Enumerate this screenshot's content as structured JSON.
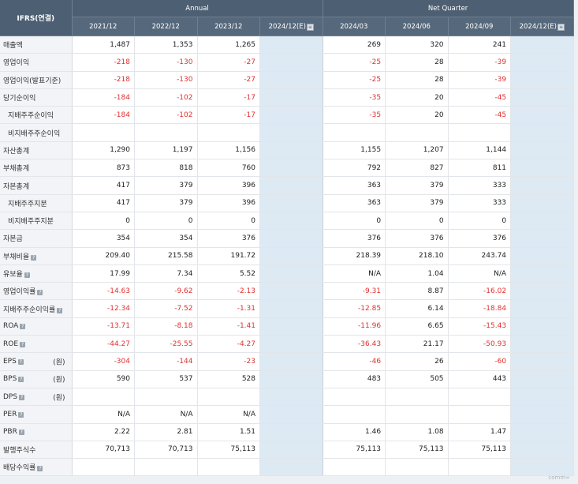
{
  "header": {
    "corner": "IFRS(연결)",
    "annual_label": "Annual",
    "quarter_label": "Net Quarter",
    "annual_cols": [
      "2021/12",
      "2022/12",
      "2023/12",
      "2024/12(E)"
    ],
    "quarter_cols": [
      "2024/03",
      "2024/06",
      "2024/09",
      "2024/12(E)"
    ]
  },
  "rows": [
    {
      "label": "매출액",
      "sub": false,
      "help": false,
      "unit": "",
      "annual": [
        "1,487",
        "1,353",
        "1,265",
        ""
      ],
      "quarter": [
        "269",
        "320",
        "241",
        ""
      ]
    },
    {
      "label": "영업이익",
      "sub": false,
      "help": false,
      "unit": "",
      "annual": [
        "-218",
        "-130",
        "-27",
        ""
      ],
      "quarter": [
        "-25",
        "28",
        "-39",
        ""
      ]
    },
    {
      "label": "영업이익(발표기준)",
      "sub": false,
      "help": false,
      "unit": "",
      "annual": [
        "-218",
        "-130",
        "-27",
        ""
      ],
      "quarter": [
        "-25",
        "28",
        "-39",
        ""
      ]
    },
    {
      "label": "당기순이익",
      "sub": false,
      "help": false,
      "unit": "",
      "annual": [
        "-184",
        "-102",
        "-17",
        ""
      ],
      "quarter": [
        "-35",
        "20",
        "-45",
        ""
      ]
    },
    {
      "label": "지배주주순이익",
      "sub": true,
      "help": false,
      "unit": "",
      "annual": [
        "-184",
        "-102",
        "-17",
        ""
      ],
      "quarter": [
        "-35",
        "20",
        "-45",
        ""
      ]
    },
    {
      "label": "비지배주주순이익",
      "sub": true,
      "help": false,
      "unit": "",
      "annual": [
        "",
        "",
        "",
        ""
      ],
      "quarter": [
        "",
        "",
        "",
        ""
      ]
    },
    {
      "label": "자산총계",
      "sub": false,
      "help": false,
      "unit": "",
      "annual": [
        "1,290",
        "1,197",
        "1,156",
        ""
      ],
      "quarter": [
        "1,155",
        "1,207",
        "1,144",
        ""
      ]
    },
    {
      "label": "부채총계",
      "sub": false,
      "help": false,
      "unit": "",
      "annual": [
        "873",
        "818",
        "760",
        ""
      ],
      "quarter": [
        "792",
        "827",
        "811",
        ""
      ]
    },
    {
      "label": "자본총계",
      "sub": false,
      "help": false,
      "unit": "",
      "annual": [
        "417",
        "379",
        "396",
        ""
      ],
      "quarter": [
        "363",
        "379",
        "333",
        ""
      ]
    },
    {
      "label": "지배주주지분",
      "sub": true,
      "help": false,
      "unit": "",
      "annual": [
        "417",
        "379",
        "396",
        ""
      ],
      "quarter": [
        "363",
        "379",
        "333",
        ""
      ]
    },
    {
      "label": "비지배주주지분",
      "sub": true,
      "help": false,
      "unit": "",
      "annual": [
        "0",
        "0",
        "0",
        ""
      ],
      "quarter": [
        "0",
        "0",
        "0",
        ""
      ]
    },
    {
      "label": "자본금",
      "sub": false,
      "help": false,
      "unit": "",
      "annual": [
        "354",
        "354",
        "376",
        ""
      ],
      "quarter": [
        "376",
        "376",
        "376",
        ""
      ]
    },
    {
      "label": "부채비율",
      "sub": false,
      "help": true,
      "unit": "",
      "annual": [
        "209.40",
        "215.58",
        "191.72",
        ""
      ],
      "quarter": [
        "218.39",
        "218.10",
        "243.74",
        ""
      ]
    },
    {
      "label": "유보율",
      "sub": false,
      "help": true,
      "unit": "",
      "annual": [
        "17.99",
        "7.34",
        "5.52",
        ""
      ],
      "quarter": [
        "N/A",
        "1.04",
        "N/A",
        ""
      ]
    },
    {
      "label": "영업이익률",
      "sub": false,
      "help": true,
      "unit": "",
      "annual": [
        "-14.63",
        "-9.62",
        "-2.13",
        ""
      ],
      "quarter": [
        "-9.31",
        "8.87",
        "-16.02",
        ""
      ]
    },
    {
      "label": "지배주주순이익률",
      "sub": false,
      "help": true,
      "unit": "",
      "annual": [
        "-12.34",
        "-7.52",
        "-1.31",
        ""
      ],
      "quarter": [
        "-12.85",
        "6.14",
        "-18.84",
        ""
      ]
    },
    {
      "label": "ROA",
      "sub": false,
      "help": true,
      "unit": "",
      "annual": [
        "-13.71",
        "-8.18",
        "-1.41",
        ""
      ],
      "quarter": [
        "-11.96",
        "6.65",
        "-15.43",
        ""
      ]
    },
    {
      "label": "ROE",
      "sub": false,
      "help": true,
      "unit": "",
      "annual": [
        "-44.27",
        "-25.55",
        "-4.27",
        ""
      ],
      "quarter": [
        "-36.43",
        "21.17",
        "-50.93",
        ""
      ]
    },
    {
      "label": "EPS",
      "sub": false,
      "help": true,
      "unit": "(원)",
      "annual": [
        "-304",
        "-144",
        "-23",
        ""
      ],
      "quarter": [
        "-46",
        "26",
        "-60",
        ""
      ]
    },
    {
      "label": "BPS",
      "sub": false,
      "help": true,
      "unit": "(원)",
      "annual": [
        "590",
        "537",
        "528",
        ""
      ],
      "quarter": [
        "483",
        "505",
        "443",
        ""
      ]
    },
    {
      "label": "DPS",
      "sub": false,
      "help": true,
      "unit": "(원)",
      "annual": [
        "",
        "",
        "",
        ""
      ],
      "quarter": [
        "",
        "",
        "",
        ""
      ]
    },
    {
      "label": "PER",
      "sub": false,
      "help": true,
      "unit": "",
      "annual": [
        "N/A",
        "N/A",
        "N/A",
        ""
      ],
      "quarter": [
        "",
        "",
        "",
        ""
      ]
    },
    {
      "label": "PBR",
      "sub": false,
      "help": true,
      "unit": "",
      "annual": [
        "2.22",
        "2.81",
        "1.51",
        ""
      ],
      "quarter": [
        "1.46",
        "1.08",
        "1.47",
        ""
      ]
    },
    {
      "label": "발행주식수",
      "sub": false,
      "help": false,
      "unit": "",
      "annual": [
        "70,713",
        "70,713",
        "75,113",
        ""
      ],
      "quarter": [
        "75,113",
        "75,113",
        "75,113",
        ""
      ]
    },
    {
      "label": "배당수익률",
      "sub": false,
      "help": true,
      "unit": "",
      "annual": [
        "",
        "",
        "",
        ""
      ],
      "quarter": [
        "",
        "",
        "",
        ""
      ]
    }
  ],
  "footer": {
    "link": "comm∞"
  },
  "colors": {
    "header_bg": "#4d5f72",
    "negative": "#e03030",
    "estimate_bg": "#dde9f3"
  },
  "icons": {
    "help": "question-icon",
    "estimate": "estimate-info-icon"
  }
}
